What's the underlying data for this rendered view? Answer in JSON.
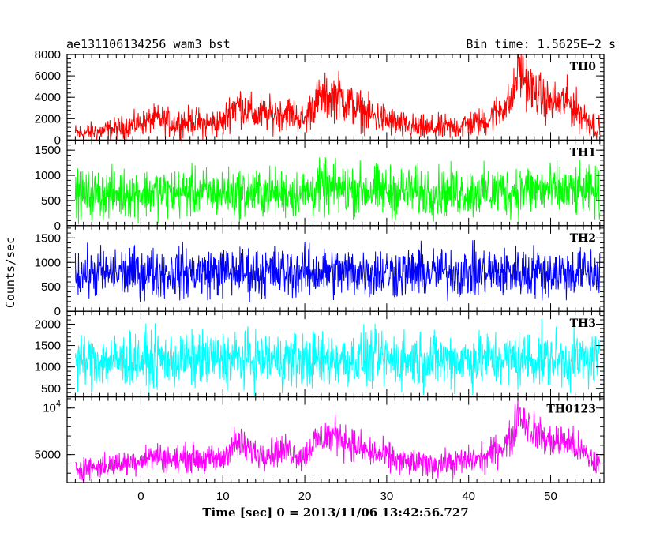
{
  "title": "ae131106134256_wam3_bst",
  "bin_time": "Bin time: 1.5625E−2 s",
  "ylabel": "Counts/sec",
  "xlabel": "Time [sec] 0 = 2013/11/06 13:42:56.727",
  "chart_data": {
    "type": "line",
    "title": "ae131106134256_wam3_bst",
    "xlabel": "Time [sec] 0 = 2013/11/06 13:42:56.727",
    "ylabel": "Counts/sec",
    "xlim": [
      -9,
      56.5
    ],
    "x_ticks": [
      0,
      10,
      20,
      30,
      40,
      50
    ],
    "x_tick_labels": [
      "0",
      "10",
      "20",
      "30",
      "40",
      "50"
    ],
    "grid": false,
    "panels": [
      {
        "name": "TH0",
        "color": "#ff0000",
        "ylim": [
          0,
          8000
        ],
        "y_ticks": [
          0,
          2000,
          4000,
          6000,
          8000
        ],
        "y_tick_labels": [
          "0",
          "2000",
          "4000",
          "6000",
          "8000"
        ],
        "x": [
          -8,
          -5,
          -2,
          0,
          2,
          4,
          6,
          8,
          10,
          11,
          12,
          14,
          16,
          18,
          20,
          21,
          22,
          24,
          26,
          28,
          30,
          32,
          34,
          36,
          38,
          40,
          42,
          44,
          45,
          45.5,
          46,
          48,
          50,
          52,
          54,
          56
        ],
        "y": [
          600,
          800,
          1200,
          1600,
          2000,
          1500,
          1800,
          1500,
          1600,
          3000,
          3300,
          2300,
          2400,
          2600,
          1800,
          3400,
          3900,
          4200,
          3100,
          2300,
          1900,
          1300,
          1100,
          1100,
          1200,
          1500,
          1700,
          3000,
          3500,
          4300,
          6800,
          4500,
          3400,
          3600,
          2200,
          1000
        ],
        "noise": [
          1400,
          1400,
          1600,
          1700,
          1900,
          2000,
          2000,
          2000,
          2100,
          2700,
          2800,
          2400,
          2400,
          2400,
          2100,
          3000,
          3100,
          3300,
          2900,
          2500,
          2200,
          1900,
          1800,
          1800,
          1800,
          1900,
          2000,
          2500,
          2800,
          3300,
          4000,
          3200,
          2900,
          3000,
          2500,
          1800
        ]
      },
      {
        "name": "TH1",
        "color": "#00ff00",
        "ylim": [
          0,
          1700
        ],
        "y_ticks": [
          0,
          500,
          1000,
          1500
        ],
        "y_tick_labels": [
          "0",
          "500",
          "1000",
          "1500"
        ],
        "x": [
          -8,
          0,
          10,
          20,
          22,
          30,
          40,
          45,
          46,
          50,
          56
        ],
        "y": [
          620,
          650,
          650,
          650,
          740,
          680,
          660,
          680,
          720,
          700,
          650
        ],
        "noise": [
          700,
          720,
          720,
          720,
          780,
          740,
          730,
          760,
          800,
          760,
          720
        ]
      },
      {
        "name": "TH2",
        "color": "#0000ff",
        "ylim": [
          0,
          1750
        ],
        "y_ticks": [
          0,
          500,
          1000,
          1500
        ],
        "y_tick_labels": [
          "0",
          "500",
          "1000",
          "1500"
        ],
        "x": [
          -8,
          0,
          10,
          20,
          30,
          40,
          50,
          56
        ],
        "y": [
          780,
          790,
          800,
          800,
          800,
          790,
          800,
          790
        ],
        "noise": [
          750,
          760,
          760,
          770,
          770,
          760,
          770,
          760
        ]
      },
      {
        "name": "TH3",
        "color": "#00ffff",
        "ylim": [
          300,
          2300
        ],
        "y_ticks": [
          500,
          1000,
          1500,
          2000
        ],
        "y_tick_labels": [
          "500",
          "1000",
          "1500",
          "2000"
        ],
        "x": [
          -8,
          0,
          10,
          20,
          30,
          40,
          50,
          56
        ],
        "y": [
          1150,
          1160,
          1170,
          1170,
          1170,
          1170,
          1180,
          1170
        ],
        "noise": [
          950,
          960,
          970,
          970,
          970,
          970,
          980,
          970
        ]
      },
      {
        "name": "TH0123",
        "color": "#ff00ff",
        "ylim": [
          2000,
          11200
        ],
        "y_ticks": [
          5000,
          10000
        ],
        "y_tick_labels": [
          "5000",
          "10^4"
        ],
        "x": [
          -8,
          -5,
          -2,
          0,
          2,
          4,
          6,
          8,
          10,
          11,
          12,
          14,
          16,
          18,
          20,
          21,
          22,
          24,
          26,
          28,
          30,
          32,
          34,
          36,
          38,
          40,
          42,
          44,
          45,
          45.5,
          46,
          48,
          50,
          52,
          54,
          56
        ],
        "y": [
          3500,
          3700,
          4100,
          4500,
          4900,
          4400,
          4700,
          4400,
          4500,
          5900,
          6200,
          5200,
          5300,
          5500,
          4700,
          6300,
          6800,
          7100,
          6000,
          5200,
          4800,
          4200,
          4000,
          4000,
          4100,
          4400,
          4600,
          5900,
          6400,
          7200,
          9700,
          7400,
          6300,
          6500,
          5100,
          3900
        ],
        "noise": [
          1900,
          1900,
          2000,
          2100,
          2200,
          2200,
          2200,
          2200,
          2300,
          2600,
          2700,
          2400,
          2400,
          2500,
          2300,
          2800,
          2900,
          3000,
          2700,
          2500,
          2400,
          2200,
          2100,
          2100,
          2100,
          2200,
          2300,
          2600,
          2800,
          3000,
          3600,
          3000,
          2800,
          2900,
          2500,
          2100
        ]
      }
    ]
  }
}
